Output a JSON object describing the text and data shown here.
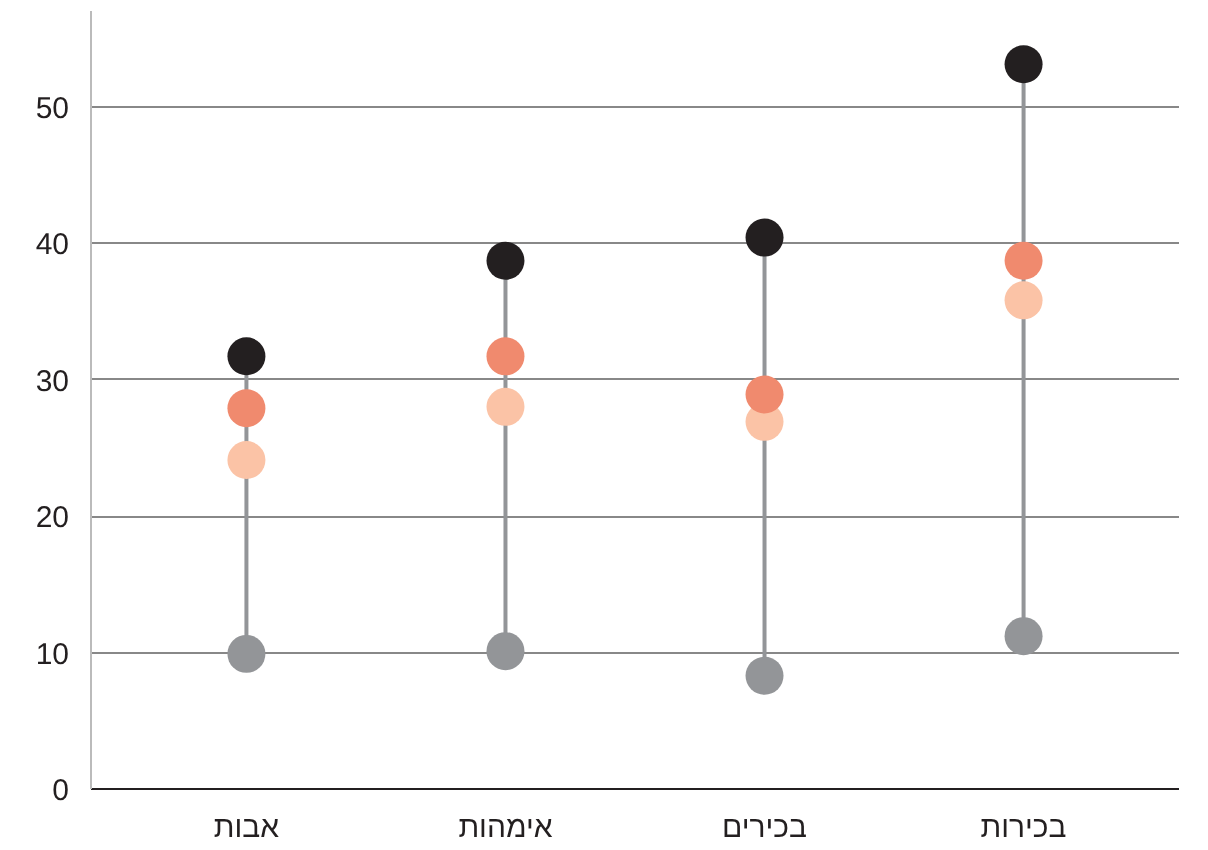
{
  "chart_data": {
    "type": "scatter",
    "categories": [
      "אבות",
      "אימהות",
      "בכירים",
      "בכירות"
    ],
    "series": [
      {
        "color": "#939598",
        "values": [
          9.9,
          10.1,
          8.3,
          11.2
        ]
      },
      {
        "color": "#fbc3a6",
        "values": [
          24.1,
          28.0,
          26.9,
          35.8
        ]
      },
      {
        "color": "#f08a6e",
        "values": [
          27.9,
          31.7,
          28.9,
          38.7
        ]
      },
      {
        "color": "#231f20",
        "values": [
          31.7,
          38.7,
          40.4,
          53.1
        ]
      }
    ],
    "ylim": [
      0,
      57
    ],
    "yticks": [
      0,
      10,
      20,
      30,
      40,
      50
    ],
    "grid": "y",
    "marker": "circle"
  }
}
